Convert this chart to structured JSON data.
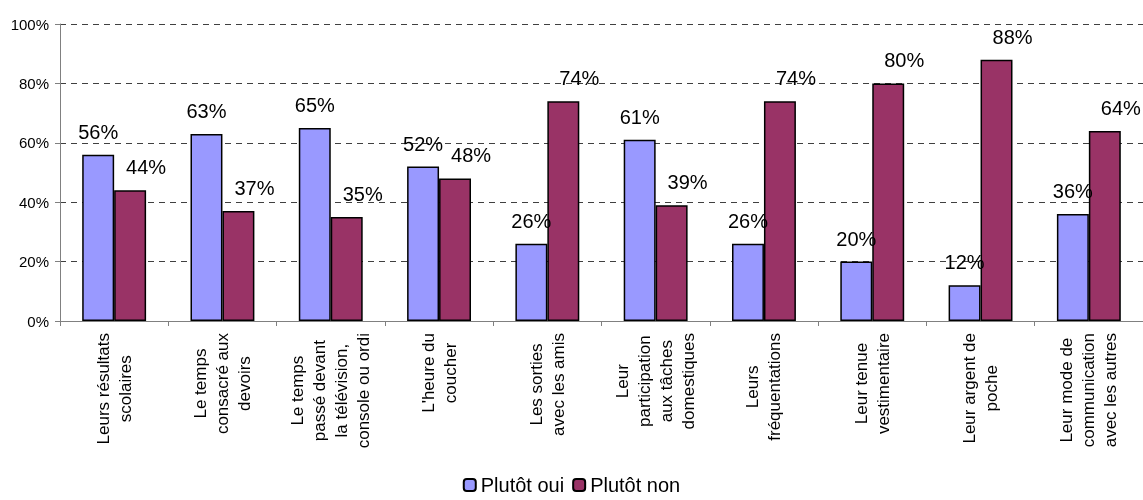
{
  "chart_data": {
    "type": "bar",
    "categories": [
      "Leurs résultats\nscolaires",
      "Le temps\nconsacré aux\ndevoirs",
      "Le temps\npassé devant\nla télévision,\nconsole ou ordi",
      "L'heure du\ncoucher",
      "Les sorties\navec les amis",
      "Leur\nparticipation\naux tâches\ndomestiques",
      "Leurs\nfréquentations",
      "Leur tenue\nvestimentaire",
      "Leur argent de\npoche",
      "Leur mode de\ncommunication\navec les autres"
    ],
    "series": [
      {
        "name": "Plutôt oui",
        "color": "#9999ff",
        "values": [
          56,
          63,
          65,
          52,
          26,
          61,
          26,
          20,
          12,
          36
        ],
        "value_labels": [
          "56%",
          "63%",
          "65%",
          "52%",
          "26%",
          "61%",
          "26%",
          "20%",
          "12%",
          "36%"
        ]
      },
      {
        "name": "Plutôt non",
        "color": "#993366",
        "values": [
          44,
          37,
          35,
          48,
          74,
          39,
          74,
          80,
          88,
          64
        ],
        "value_labels": [
          "44%",
          "37%",
          "35%",
          "48%",
          "74%",
          "39%",
          "74%",
          "80%",
          "88%",
          "64%"
        ]
      }
    ],
    "ylim": [
      0,
      100
    ],
    "yticks": [
      {
        "value": 0,
        "label": "0%"
      },
      {
        "value": 20,
        "label": "20%"
      },
      {
        "value": 40,
        "label": "40%"
      },
      {
        "value": 60,
        "label": "60%"
      },
      {
        "value": 80,
        "label": "80%"
      },
      {
        "value": 100,
        "label": "100%"
      }
    ],
    "grid": "y",
    "legend": "bottom"
  }
}
